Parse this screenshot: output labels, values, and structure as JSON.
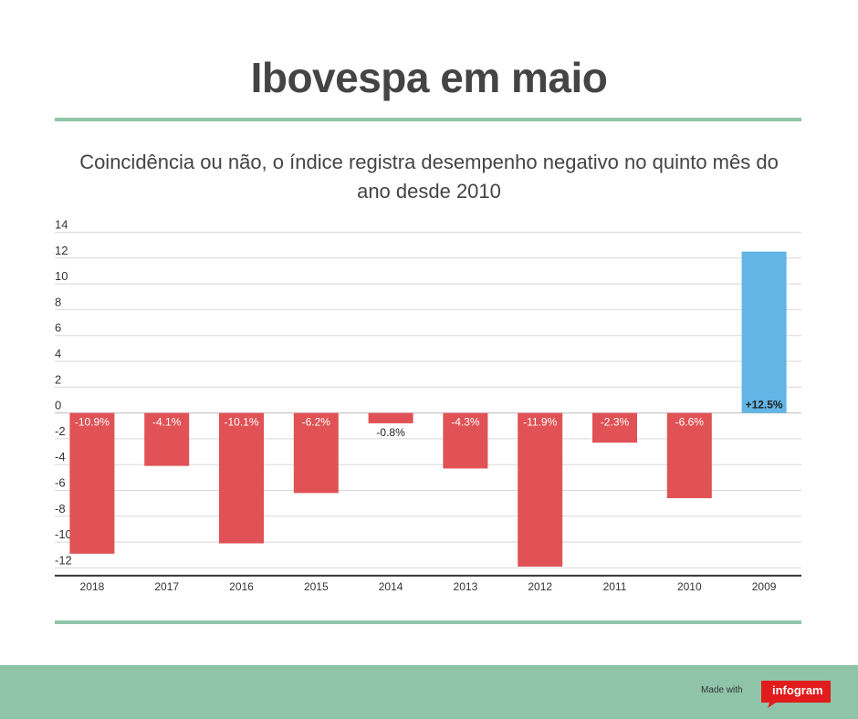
{
  "header": {
    "title": "Ibovespa em maio",
    "subtitle": "Coincidência ou não, o índice registra desempenho negativo no quinto mês do ano desde 2010"
  },
  "chart_data": {
    "type": "bar",
    "title": "Ibovespa em maio",
    "subtitle": "Coincidência ou não, o índice registra desempenho negativo no quinto mês do ano desde 2010",
    "xlabel": "",
    "ylabel": "",
    "categories": [
      "2018",
      "2017",
      "2016",
      "2015",
      "2014",
      "2013",
      "2012",
      "2011",
      "2010",
      "2009"
    ],
    "values": [
      -10.9,
      -4.1,
      -10.1,
      -6.2,
      -0.8,
      -4.3,
      -11.9,
      -2.3,
      -6.6,
      12.5
    ],
    "data_labels": [
      "-10.9%",
      "-4.1%",
      "-10.1%",
      "-6.2%",
      "-0.8%",
      "-4.3%",
      "-11.9%",
      "-2.3%",
      "-6.6%",
      "+12.5%"
    ],
    "ylim": [
      -12.6,
      14
    ],
    "yticks": [
      14,
      12,
      10,
      8,
      6,
      4,
      2,
      0,
      -2,
      -4,
      -6,
      -8,
      -10,
      -12
    ],
    "grid": true,
    "legend": "none",
    "colors": {
      "negative": "#e05255",
      "positive": "#62b5e5"
    }
  },
  "footer": {
    "made_with": "Made with",
    "brand": "infogram",
    "background": "#8fc4a8",
    "brand_color": "#e21c1c"
  }
}
